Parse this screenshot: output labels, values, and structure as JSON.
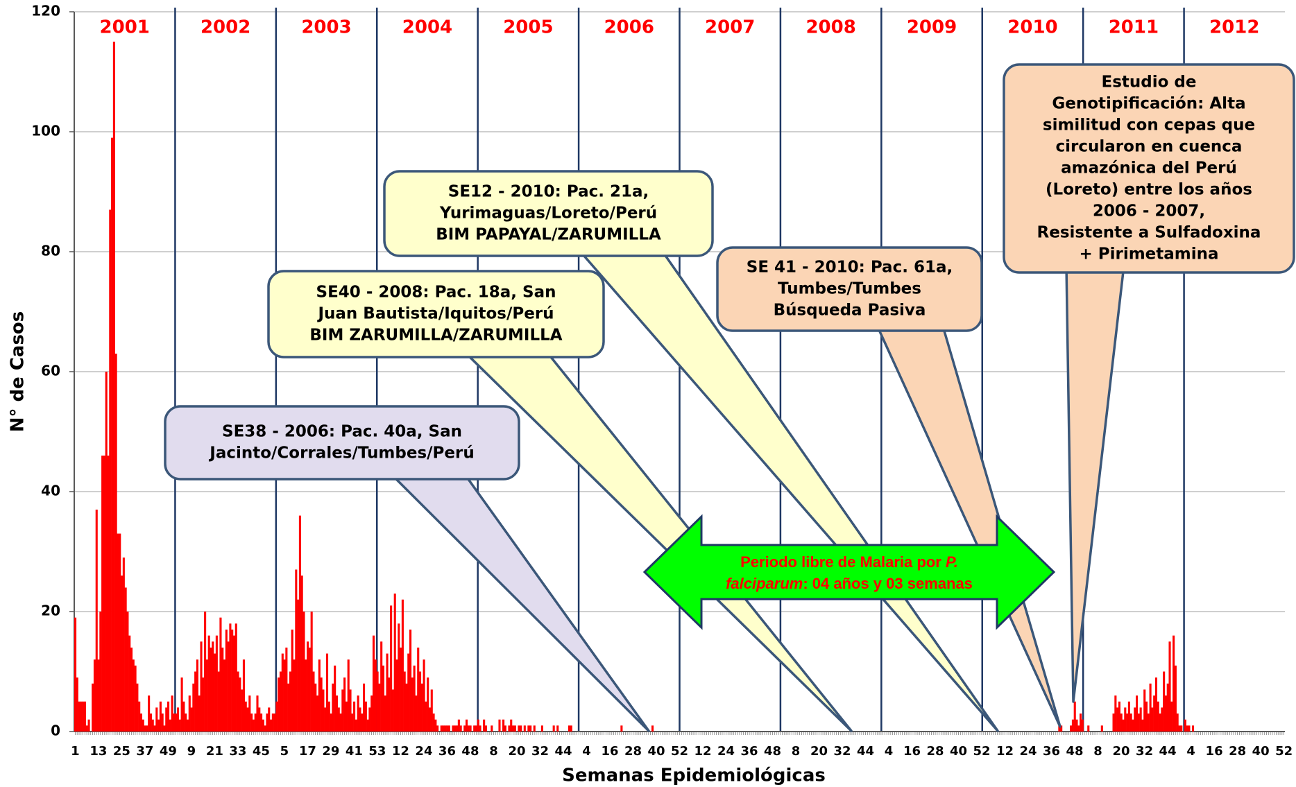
{
  "chart_data": {
    "type": "bar",
    "xlabel": "Semanas Epidemiológicas",
    "ylabel": "N° de Casos",
    "color": "#ff0000",
    "grid": true,
    "ylim": [
      0,
      120
    ],
    "yticks": [
      0,
      20,
      40,
      60,
      80,
      100,
      120
    ],
    "years": [
      "2001",
      "2002",
      "2003",
      "2004",
      "2005",
      "2006",
      "2007",
      "2008",
      "2009",
      "2010",
      "2011",
      "2012"
    ],
    "annotations": [
      {
        "lines": [
          "SE38 - 2006: Pac. 40a, San",
          "Jacinto/Corrales/Tumbes/Perú"
        ]
      },
      {
        "lines": [
          "SE40 - 2008: Pac. 18a, San",
          "Juan Bautista/Iquitos/Perú",
          "BIM ZARUMILLA/ZARUMILLA"
        ]
      },
      {
        "lines": [
          "SE12 - 2010: Pac. 21a,",
          "Yurimaguas/Loreto/Perú",
          "BIM PAPAYAL/ZARUMILLA"
        ]
      },
      {
        "lines": [
          "SE 41 - 2010: Pac. 61a,",
          "Tumbes/Tumbes",
          "Búsqueda Pasiva"
        ]
      },
      {
        "lines": [
          "Estudio de",
          "Genotipificación:  Alta",
          "similitud con cepas que",
          "circularon en cuenca",
          "amazónica del Perú",
          "(Loreto) entre los años",
          "2006 - 2007,",
          "Resistente a Sulfadoxina",
          "+ Pirimetamina"
        ]
      }
    ],
    "arrow_text": [
      "Periodo libre de Malaria por ",
      "P.",
      "falciparum",
      ": 04 años y 03 semanas"
    ],
    "categories": [
      "1",
      null,
      null,
      null,
      null,
      null,
      null,
      null,
      null,
      null,
      null,
      null,
      "13",
      null,
      null,
      null,
      null,
      null,
      null,
      null,
      null,
      null,
      null,
      null,
      "25",
      null,
      null,
      null,
      null,
      null,
      null,
      null,
      null,
      null,
      null,
      null,
      "37",
      null,
      null,
      null,
      null,
      null,
      null,
      null,
      null,
      null,
      null,
      null,
      "49",
      null,
      null,
      null,
      null,
      null,
      null,
      null,
      null,
      null,
      null,
      null,
      "9",
      null,
      null,
      null,
      null,
      null,
      null,
      null,
      null,
      null,
      null,
      null,
      "21",
      null,
      null,
      null,
      null,
      null,
      null,
      null,
      null,
      null,
      null,
      null,
      "33",
      null,
      null,
      null,
      null,
      null,
      null,
      null,
      null,
      null,
      null,
      null,
      "45",
      null,
      null,
      null,
      null,
      null,
      null,
      null,
      null,
      null,
      null,
      null,
      "5",
      null,
      null,
      null,
      null,
      null,
      null,
      null,
      null,
      null,
      null,
      null,
      "17",
      null,
      null,
      null,
      null,
      null,
      null,
      null,
      null,
      null,
      null,
      null,
      "29",
      null,
      null,
      null,
      null,
      null,
      null,
      null,
      null,
      null,
      null,
      null,
      "41",
      null,
      null,
      null,
      null,
      null,
      null,
      null,
      null,
      null,
      null,
      null,
      "53",
      null,
      null,
      null,
      null,
      null,
      null,
      null,
      null,
      null,
      null,
      null,
      "12",
      null,
      null,
      null,
      null,
      null,
      null,
      null,
      null,
      null,
      null,
      null,
      "24",
      null,
      null,
      null,
      null,
      null,
      null,
      null,
      null,
      null,
      null,
      null,
      "36",
      null,
      null,
      null,
      null,
      null,
      null,
      null,
      null,
      null,
      null,
      null,
      "48",
      null,
      null,
      null,
      null,
      null,
      null,
      null,
      null,
      null,
      null,
      null,
      "8",
      null,
      null,
      null,
      null,
      null,
      null,
      null,
      null,
      null,
      null,
      null,
      "20",
      null,
      null,
      null,
      null,
      null,
      null,
      null,
      null,
      null,
      null,
      null,
      "32",
      null,
      null,
      null,
      null,
      null,
      null,
      null,
      null,
      null,
      null,
      null,
      "44",
      null,
      null,
      null,
      null,
      null,
      null,
      null,
      null,
      null,
      null,
      null,
      "4",
      null,
      null,
      null,
      null,
      null,
      null,
      null,
      null,
      null,
      null,
      null,
      "16",
      null,
      null,
      null,
      null,
      null,
      null,
      null,
      null,
      null,
      null,
      null,
      "28",
      null,
      null,
      null,
      null,
      null,
      null,
      null,
      null,
      null,
      null,
      null,
      "40",
      null,
      null,
      null,
      null,
      null,
      null,
      null,
      null,
      null,
      null,
      null,
      "52",
      null,
      null,
      null,
      null,
      null,
      null,
      null,
      null,
      null,
      null,
      null,
      "12",
      null,
      null,
      null,
      null,
      null,
      null,
      null,
      null,
      null,
      null,
      null,
      "24",
      null,
      null,
      null,
      null,
      null,
      null,
      null,
      null,
      null,
      null,
      null,
      "36",
      null,
      null,
      null,
      null,
      null,
      null,
      null,
      null,
      null,
      null,
      null,
      "48",
      null,
      null,
      null,
      null,
      null,
      null,
      null,
      null,
      null,
      null,
      null,
      "8",
      null,
      null,
      null,
      null,
      null,
      null,
      null,
      null,
      null,
      null,
      null,
      "20",
      null,
      null,
      null,
      null,
      null,
      null,
      null,
      null,
      null,
      null,
      null,
      "32",
      null,
      null,
      null,
      null,
      null,
      null,
      null,
      null,
      null,
      null,
      null,
      "44",
      null,
      null,
      null,
      null,
      null,
      null,
      null,
      null,
      null,
      null,
      null,
      "4",
      null,
      null,
      null,
      null,
      null,
      null,
      null,
      null,
      null,
      null,
      null,
      "16",
      null,
      null,
      null,
      null,
      null,
      null,
      null,
      null,
      null,
      null,
      null,
      "28",
      null,
      null,
      null,
      null,
      null,
      null,
      null,
      null,
      null,
      null,
      null,
      "40",
      null,
      null,
      null,
      null,
      null,
      null,
      null,
      null,
      null,
      null,
      null,
      "52",
      null,
      null,
      null,
      null,
      null,
      null,
      null,
      null,
      null,
      null,
      null,
      "12",
      null,
      null,
      null,
      null,
      null,
      null,
      null,
      null,
      null,
      null,
      null,
      "24",
      null,
      null,
      null,
      null,
      null,
      null,
      null,
      null,
      null,
      null,
      null,
      "36",
      null,
      null,
      null,
      null,
      null,
      null,
      null,
      null,
      null,
      null,
      null,
      "48",
      null,
      null,
      null,
      null,
      null,
      null,
      null,
      null,
      null,
      null,
      null,
      "8",
      null,
      null,
      null,
      null,
      null,
      null,
      null,
      null,
      null,
      null,
      null,
      "20",
      null,
      null,
      null,
      null,
      null,
      null,
      null,
      null,
      null,
      null,
      null,
      "32",
      null,
      null,
      null,
      null,
      null,
      null,
      null,
      null,
      null,
      null,
      null,
      "44",
      null,
      null,
      null,
      null,
      null,
      null,
      null,
      null,
      null,
      null,
      null,
      "4",
      null,
      null,
      null,
      null,
      null,
      null,
      null,
      null,
      null,
      null,
      null,
      "16",
      null,
      null,
      null,
      null,
      null,
      null,
      null,
      null,
      null,
      null,
      null,
      "28",
      null,
      null,
      null,
      null,
      null,
      null,
      null,
      null,
      null,
      null,
      null,
      "40",
      null,
      null,
      null,
      null,
      null,
      null,
      null,
      null,
      null,
      null,
      null,
      "52"
    ],
    "values": [
      19,
      9,
      5,
      5,
      5,
      5,
      1,
      2,
      0,
      8,
      12,
      37,
      12,
      20,
      46,
      46,
      60,
      46,
      87,
      99,
      115,
      63,
      33,
      33,
      26,
      29,
      24,
      20,
      16,
      14,
      12,
      11,
      8,
      5,
      3,
      2,
      1,
      1,
      6,
      3,
      2,
      1,
      4,
      2,
      5,
      3,
      1,
      4,
      5,
      2,
      6,
      3,
      3,
      4,
      2,
      9,
      5,
      3,
      2,
      6,
      4,
      8,
      10,
      12,
      6,
      15,
      9,
      20,
      12,
      16,
      14,
      15,
      13,
      16,
      10,
      19,
      14,
      12,
      17,
      15,
      18,
      17,
      16,
      18,
      10,
      9,
      7,
      12,
      5,
      4,
      6,
      3,
      2,
      3,
      6,
      4,
      3,
      2,
      1,
      3,
      4,
      2,
      3,
      3,
      5,
      9,
      10,
      13,
      12,
      14,
      8,
      10,
      17,
      12,
      27,
      22,
      36,
      26,
      20,
      12,
      15,
      14,
      20,
      10,
      8,
      6,
      12,
      9,
      7,
      4,
      13,
      5,
      3,
      8,
      11,
      6,
      4,
      3,
      7,
      9,
      5,
      12,
      7,
      3,
      5,
      2,
      6,
      4,
      3,
      8,
      5,
      2,
      4,
      6,
      16,
      12,
      10,
      8,
      15,
      11,
      6,
      13,
      9,
      21,
      7,
      23,
      12,
      18,
      14,
      22,
      10,
      8,
      13,
      17,
      9,
      11,
      6,
      14,
      10,
      8,
      12,
      5,
      9,
      4,
      7,
      3,
      2,
      1,
      0,
      1,
      1,
      1,
      1,
      1,
      0,
      1,
      1,
      1,
      2,
      1,
      0,
      1,
      2,
      1,
      1,
      0,
      1,
      1,
      2,
      1,
      0,
      2,
      1,
      0,
      0,
      1,
      0,
      0,
      0,
      2,
      0,
      2,
      1,
      0,
      1,
      2,
      1,
      1,
      0,
      1,
      1,
      0,
      1,
      0,
      1,
      1,
      0,
      1,
      0,
      0,
      0,
      1,
      0,
      0,
      0,
      0,
      0,
      1,
      0,
      1,
      0,
      0,
      0,
      0,
      0,
      1,
      1,
      0,
      0,
      0,
      0,
      0,
      0,
      0,
      0,
      0,
      0,
      0,
      0,
      0,
      0,
      0,
      0,
      0,
      0,
      0,
      0,
      0,
      0,
      0,
      0,
      0,
      1,
      0,
      0,
      0,
      0,
      0,
      0,
      0,
      0,
      0,
      0,
      0,
      0,
      0,
      0,
      0,
      1,
      0,
      0,
      0,
      0,
      0,
      0,
      0,
      0,
      0,
      0,
      0,
      0,
      0,
      0,
      0,
      0,
      0,
      0,
      0,
      0,
      0,
      0,
      0,
      0,
      0,
      0,
      0,
      0,
      0,
      0,
      0,
      0,
      0,
      0,
      0,
      0,
      0,
      0,
      0,
      0,
      0,
      0,
      0,
      0,
      0,
      0,
      0,
      0,
      0,
      0,
      0,
      0,
      0,
      0,
      0,
      0,
      0,
      0,
      0,
      0,
      0,
      0,
      0,
      0,
      0,
      0,
      0,
      0,
      0,
      0,
      0,
      0,
      0,
      0,
      0,
      0,
      0,
      0,
      0,
      0,
      0,
      0,
      0,
      0,
      0,
      0,
      0,
      0,
      0,
      0,
      0,
      0,
      0,
      0,
      0,
      0,
      0,
      0,
      0,
      0,
      0,
      0,
      0,
      0,
      0,
      0,
      0,
      0,
      0,
      0,
      0,
      0,
      0,
      0,
      0,
      0,
      0,
      0,
      0,
      0,
      0,
      0,
      0,
      0,
      0,
      0,
      0,
      0,
      0,
      0,
      0,
      0,
      0,
      0,
      0,
      0,
      0,
      0,
      0,
      0,
      0,
      0,
      0,
      0,
      0,
      0,
      0,
      0,
      0,
      0,
      0,
      0,
      0,
      0,
      0,
      0,
      0,
      0,
      0,
      0,
      0,
      0,
      0,
      0,
      0,
      0,
      0,
      0,
      0,
      0,
      0,
      0,
      0,
      0,
      0,
      0,
      0,
      0,
      0,
      0,
      0,
      0,
      0,
      0,
      0,
      0,
      0,
      0,
      0,
      0,
      0,
      0,
      0,
      0,
      0,
      0,
      0,
      0,
      0,
      0,
      0,
      0,
      0,
      0,
      0,
      0,
      0,
      0,
      0,
      1,
      1,
      0,
      0,
      0,
      0,
      1,
      2,
      5,
      2,
      1,
      3,
      2,
      0,
      0,
      1,
      0,
      0,
      0,
      0,
      0,
      0,
      1,
      0,
      0,
      0,
      0,
      0,
      3,
      6,
      4,
      5,
      3,
      2,
      4,
      3,
      5,
      3,
      2,
      4,
      6,
      3,
      4,
      2,
      7,
      5,
      3,
      8,
      4,
      6,
      9,
      5,
      3,
      4,
      10,
      6,
      8,
      15,
      5,
      16,
      11,
      3,
      1,
      1,
      0,
      2,
      1,
      1,
      0,
      1,
      0,
      0,
      0,
      0,
      0,
      0,
      0,
      0,
      0,
      0,
      0,
      0,
      0,
      0,
      0,
      0,
      0,
      0,
      0,
      0,
      0,
      0,
      0,
      0,
      0,
      0,
      0,
      0,
      0,
      0,
      0,
      0,
      0,
      0,
      0,
      0,
      0,
      0,
      0,
      0,
      0,
      0,
      0,
      0,
      0,
      0,
      0
    ]
  }
}
